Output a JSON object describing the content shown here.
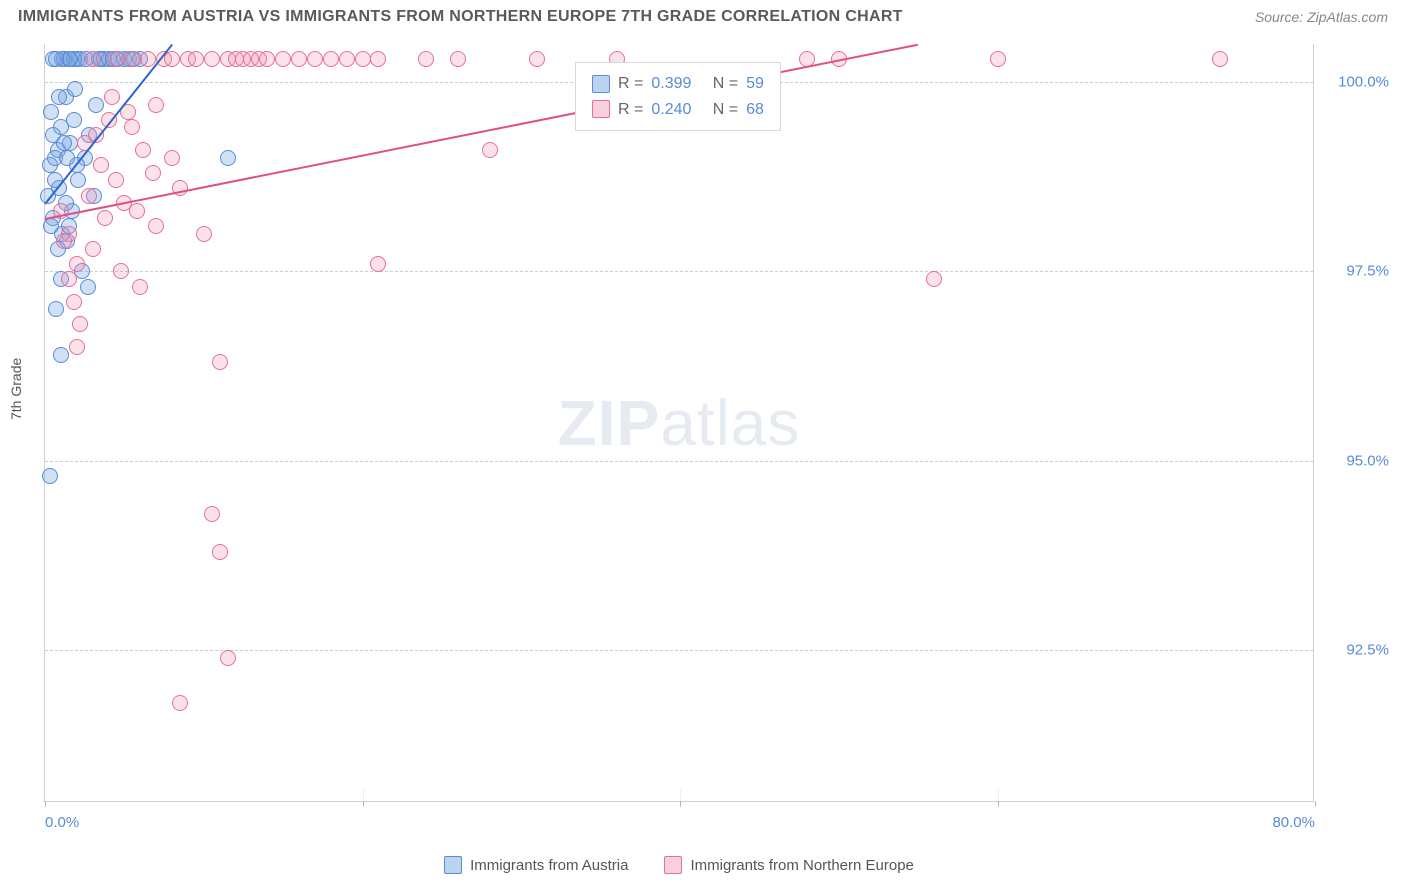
{
  "header": {
    "title": "IMMIGRANTS FROM AUSTRIA VS IMMIGRANTS FROM NORTHERN EUROPE 7TH GRADE CORRELATION CHART",
    "source": "Source: ZipAtlas.com"
  },
  "chart": {
    "type": "scatter",
    "y_axis_label": "7th Grade",
    "background_color": "#ffffff",
    "grid_color": "#cccccc",
    "x_range": [
      0,
      80
    ],
    "y_range": [
      90.5,
      100.5
    ],
    "y_ticks": [
      {
        "value": 100.0,
        "label": "100.0%"
      },
      {
        "value": 97.5,
        "label": "97.5%"
      },
      {
        "value": 95.0,
        "label": "95.0%"
      },
      {
        "value": 92.5,
        "label": "92.5%"
      }
    ],
    "x_ticks": [
      {
        "value": 0,
        "label": "0.0%"
      },
      {
        "value": 80,
        "label": "80.0%"
      }
    ],
    "x_tick_marks": [
      0,
      20,
      40,
      60,
      80
    ],
    "watermark": {
      "bold": "ZIP",
      "light": "atlas"
    },
    "series": [
      {
        "name": "Immigrants from Austria",
        "color_fill": "rgba(120,165,225,0.35)",
        "color_stroke": "#5a8ad6",
        "class": "blue",
        "correlation_r": "0.399",
        "correlation_n": "59",
        "trend_line": {
          "x1": 0,
          "y1": 98.4,
          "x2": 8,
          "y2": 100.5
        },
        "points": [
          [
            0.2,
            98.5
          ],
          [
            0.5,
            98.2
          ],
          [
            0.3,
            98.9
          ],
          [
            0.8,
            99.1
          ],
          [
            1.0,
            99.4
          ],
          [
            1.2,
            100.3
          ],
          [
            1.5,
            100.3
          ],
          [
            0.4,
            99.6
          ],
          [
            0.6,
            99.0
          ],
          [
            0.9,
            98.6
          ],
          [
            1.1,
            98.0
          ],
          [
            1.3,
            99.8
          ],
          [
            1.6,
            99.2
          ],
          [
            1.8,
            99.5
          ],
          [
            2.0,
            100.3
          ],
          [
            2.2,
            100.3
          ],
          [
            2.5,
            99.0
          ],
          [
            2.7,
            97.3
          ],
          [
            3.0,
            100.3
          ],
          [
            3.2,
            99.7
          ],
          [
            3.5,
            100.3
          ],
          [
            0.7,
            97.0
          ],
          [
            1.0,
            96.4
          ],
          [
            0.5,
            99.3
          ],
          [
            1.4,
            97.9
          ],
          [
            1.7,
            98.3
          ],
          [
            1.9,
            99.9
          ],
          [
            2.1,
            98.7
          ],
          [
            2.3,
            97.5
          ],
          [
            2.6,
            100.3
          ],
          [
            2.8,
            99.3
          ],
          [
            3.1,
            98.5
          ],
          [
            3.4,
            100.3
          ],
          [
            3.7,
            100.3
          ],
          [
            4.0,
            100.3
          ],
          [
            0.3,
            94.8
          ],
          [
            1.2,
            100.3
          ],
          [
            1.5,
            98.1
          ],
          [
            1.8,
            100.3
          ],
          [
            2.0,
            98.9
          ],
          [
            0.9,
            99.8
          ],
          [
            1.1,
            100.3
          ],
          [
            1.3,
            98.4
          ],
          [
            1.6,
            100.3
          ],
          [
            4.3,
            100.3
          ],
          [
            4.6,
            100.3
          ],
          [
            5.0,
            100.3
          ],
          [
            5.3,
            100.3
          ],
          [
            5.6,
            100.3
          ],
          [
            6.0,
            100.3
          ],
          [
            0.8,
            97.8
          ],
          [
            0.4,
            98.1
          ],
          [
            0.6,
            98.7
          ],
          [
            1.0,
            97.4
          ],
          [
            1.2,
            99.2
          ],
          [
            1.4,
            99.0
          ],
          [
            11.5,
            99.0
          ],
          [
            0.5,
            100.3
          ],
          [
            0.7,
            100.3
          ]
        ]
      },
      {
        "name": "Immigrants from Northern Europe",
        "color_fill": "rgba(240,150,175,0.28)",
        "color_stroke": "#e66f98",
        "class": "pink",
        "correlation_r": "0.240",
        "correlation_n": "68",
        "trend_line": {
          "x1": 0,
          "y1": 98.2,
          "x2": 55,
          "y2": 100.5
        },
        "points": [
          [
            1.0,
            98.3
          ],
          [
            1.5,
            98.0
          ],
          [
            2.0,
            97.6
          ],
          [
            2.5,
            99.2
          ],
          [
            3.0,
            100.3
          ],
          [
            3.5,
            98.9
          ],
          [
            4.0,
            99.5
          ],
          [
            4.5,
            100.3
          ],
          [
            5.0,
            98.4
          ],
          [
            5.5,
            100.3
          ],
          [
            6.0,
            97.3
          ],
          [
            6.5,
            100.3
          ],
          [
            7.0,
            98.1
          ],
          [
            7.5,
            100.3
          ],
          [
            8.0,
            99.0
          ],
          [
            8.5,
            98.6
          ],
          [
            9.0,
            100.3
          ],
          [
            9.5,
            100.3
          ],
          [
            10.0,
            98.0
          ],
          [
            10.5,
            100.3
          ],
          [
            11.0,
            96.3
          ],
          [
            11.5,
            100.3
          ],
          [
            12.0,
            100.3
          ],
          [
            12.5,
            100.3
          ],
          [
            13.0,
            100.3
          ],
          [
            13.5,
            100.3
          ],
          [
            14.0,
            100.3
          ],
          [
            15.0,
            100.3
          ],
          [
            16.0,
            100.3
          ],
          [
            17.0,
            100.3
          ],
          [
            18.0,
            100.3
          ],
          [
            19.0,
            100.3
          ],
          [
            20.0,
            100.3
          ],
          [
            21.0,
            100.3
          ],
          [
            24.0,
            100.3
          ],
          [
            26.0,
            100.3
          ],
          [
            28.0,
            99.1
          ],
          [
            31.0,
            100.3
          ],
          [
            36.0,
            100.3
          ],
          [
            48.0,
            100.3
          ],
          [
            50.0,
            100.3
          ],
          [
            56.0,
            97.4
          ],
          [
            60.0,
            100.3
          ],
          [
            74.0,
            100.3
          ],
          [
            1.2,
            97.9
          ],
          [
            1.8,
            97.1
          ],
          [
            2.2,
            96.8
          ],
          [
            2.8,
            98.5
          ],
          [
            3.2,
            99.3
          ],
          [
            3.8,
            98.2
          ],
          [
            4.2,
            99.8
          ],
          [
            4.8,
            97.5
          ],
          [
            5.2,
            99.6
          ],
          [
            5.8,
            98.3
          ],
          [
            6.2,
            99.1
          ],
          [
            6.8,
            98.8
          ],
          [
            8.5,
            91.8
          ],
          [
            10.5,
            94.3
          ],
          [
            11.0,
            93.8
          ],
          [
            11.5,
            92.4
          ],
          [
            21.0,
            97.6
          ],
          [
            1.5,
            97.4
          ],
          [
            2.0,
            96.5
          ],
          [
            3.0,
            97.8
          ],
          [
            4.5,
            98.7
          ],
          [
            5.5,
            99.4
          ],
          [
            7.0,
            99.7
          ],
          [
            8.0,
            100.3
          ]
        ]
      }
    ],
    "bottom_legend": [
      {
        "class": "blue",
        "label": "Immigrants from Austria"
      },
      {
        "class": "pink",
        "label": "Immigrants from Northern Europe"
      }
    ]
  }
}
